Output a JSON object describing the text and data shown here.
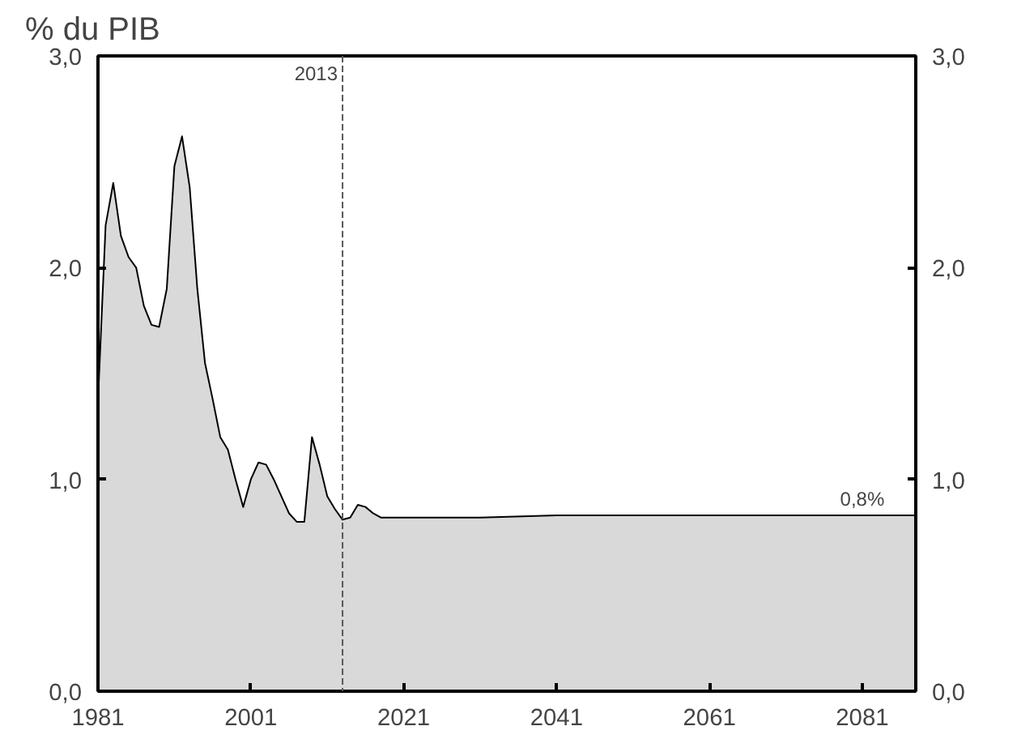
{
  "chart_data": {
    "type": "area",
    "ylabel": "% du PIB",
    "x": [
      1981,
      1982,
      1983,
      1984,
      1985,
      1986,
      1987,
      1988,
      1989,
      1990,
      1991,
      1992,
      1993,
      1994,
      1995,
      1996,
      1997,
      1998,
      1999,
      2000,
      2001,
      2002,
      2003,
      2004,
      2005,
      2006,
      2007,
      2008,
      2009,
      2010,
      2011,
      2012,
      2013,
      2014,
      2015,
      2016,
      2017,
      2018,
      2019,
      2021,
      2031,
      2041,
      2051,
      2061,
      2071,
      2081,
      2088
    ],
    "series": [
      {
        "color": "#d9d9d9",
        "values": [
          1.37,
          2.2,
          2.4,
          2.15,
          2.05,
          2.0,
          1.82,
          1.73,
          1.72,
          1.9,
          2.48,
          2.62,
          2.38,
          1.9,
          1.55,
          1.38,
          1.2,
          1.14,
          1.0,
          0.87,
          1.0,
          1.08,
          1.07,
          1.0,
          0.92,
          0.84,
          0.8,
          0.8,
          1.2,
          1.07,
          0.92,
          0.86,
          0.81,
          0.82,
          0.88,
          0.87,
          0.84,
          0.82,
          0.82,
          0.82,
          0.82,
          0.83,
          0.83,
          0.83,
          0.83,
          0.83,
          0.83
        ]
      }
    ],
    "xlim": [
      1981,
      2088
    ],
    "xticks": [
      1981,
      2001,
      2021,
      2041,
      2061,
      2081
    ],
    "ylim": [
      0,
      3
    ],
    "yticks": [
      {
        "value": 0,
        "label": "0,0"
      },
      {
        "value": 1,
        "label": "1,0"
      },
      {
        "value": 2,
        "label": "2,0"
      },
      {
        "value": 3,
        "label": "3,0"
      }
    ],
    "y2lim": [
      0,
      3
    ],
    "y2ticks": [
      {
        "value": 0,
        "label": "0,0"
      },
      {
        "value": 1,
        "label": "1,0"
      },
      {
        "value": 2,
        "label": "2,0"
      },
      {
        "value": 3,
        "label": "3,0"
      }
    ],
    "ref_lines": [
      {
        "axis": "x",
        "value": 2013,
        "label": "2013",
        "color": "#595959",
        "line_style": "dashed"
      }
    ],
    "annotations": [
      {
        "text": "0,8%",
        "x": 2081,
        "y": 0.83
      }
    ],
    "grid": false
  }
}
